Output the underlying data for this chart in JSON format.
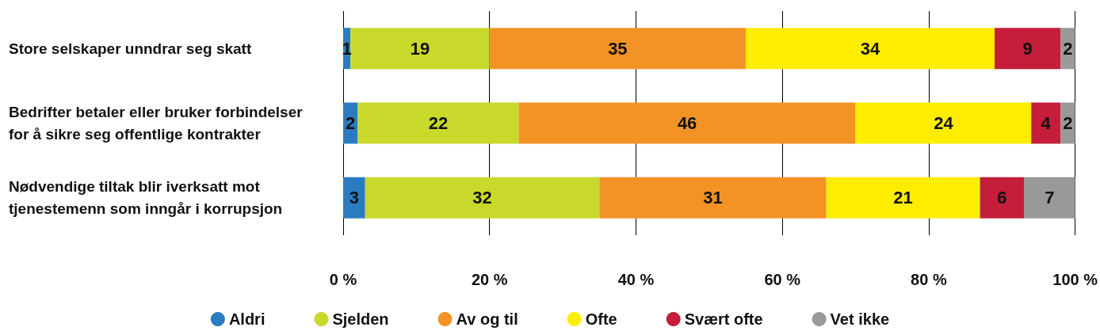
{
  "chart_data": {
    "type": "bar",
    "orientation": "horizontal",
    "stacked": true,
    "data_labels": true,
    "grid": "x",
    "legend": "bottom",
    "categories": [
      "Store selskaper unndrar seg skatt",
      "Bedrifter betaler eller bruker forbindelser for å sikre seg offentlige kontrakter",
      "Nødvendige tiltak blir iverksatt mot tjenestemenn som inngår i korrupsjon"
    ],
    "xlim": [
      0,
      100
    ],
    "xticks": [
      {
        "value": 0,
        "label": "0 %"
      },
      {
        "value": 20,
        "label": "20 %"
      },
      {
        "value": 40,
        "label": "40 %"
      },
      {
        "value": 60,
        "label": "60 %"
      },
      {
        "value": 80,
        "label": "80 %"
      },
      {
        "value": 100,
        "label": "100 %"
      }
    ],
    "series": [
      {
        "name": "Aldri",
        "color": "#2a7bc0",
        "values": [
          1,
          2,
          3
        ]
      },
      {
        "name": "Sjelden",
        "color": "#c8d92b",
        "values": [
          19,
          22,
          32
        ]
      },
      {
        "name": "Av og til",
        "color": "#f39325",
        "values": [
          35,
          46,
          31
        ]
      },
      {
        "name": "Ofte",
        "color": "#ffed00",
        "values": [
          34,
          24,
          21
        ]
      },
      {
        "name": "Svært ofte",
        "color": "#c41e3a",
        "values": [
          9,
          4,
          6
        ]
      },
      {
        "name": "Vet ikke",
        "color": "#999999",
        "values": [
          2,
          2,
          7
        ]
      }
    ]
  }
}
